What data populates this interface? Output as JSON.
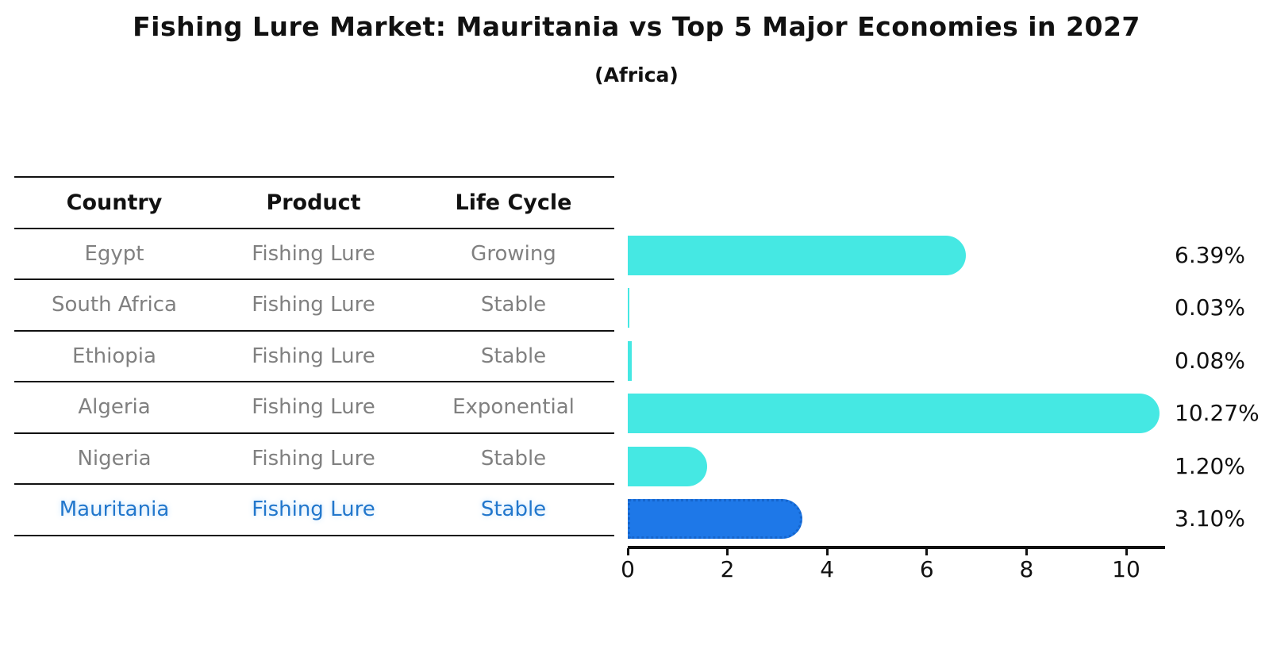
{
  "title": "Fishing Lure Market: Mauritania vs Top 5 Major Economies in 2027",
  "subtitle": "(Africa)",
  "table": {
    "headers": {
      "country": "Country",
      "product": "Product",
      "life_cycle": "Life Cycle"
    },
    "rows": [
      {
        "country": "Egypt",
        "product": "Fishing Lure",
        "life_cycle": "Growing",
        "highlighted": false
      },
      {
        "country": "South Africa",
        "product": "Fishing Lure",
        "life_cycle": "Stable",
        "highlighted": false
      },
      {
        "country": "Ethiopia",
        "product": "Fishing Lure",
        "life_cycle": "Stable",
        "highlighted": false
      },
      {
        "country": "Algeria",
        "product": "Fishing Lure",
        "life_cycle": "Exponential",
        "highlighted": false
      },
      {
        "country": "Nigeria",
        "product": "Fishing Lure",
        "life_cycle": "Stable",
        "highlighted": false
      },
      {
        "country": "Mauritania",
        "product": "Fishing Lure",
        "life_cycle": "Stable",
        "highlighted": true
      }
    ]
  },
  "chart_data": {
    "type": "bar",
    "orientation": "horizontal",
    "title": "Fishing Lure Market: Mauritania vs Top 5 Major Economies in 2027",
    "subtitle": "(Africa)",
    "categories": [
      "Egypt",
      "South Africa",
      "Ethiopia",
      "Algeria",
      "Nigeria",
      "Mauritania"
    ],
    "values": [
      6.39,
      0.03,
      0.08,
      10.27,
      1.2,
      3.1
    ],
    "value_labels": [
      "6.39%",
      "0.03%",
      "0.08%",
      "10.27%",
      "1.20%",
      "3.10%"
    ],
    "highlight_category": "Mauritania",
    "xlabel": "",
    "ylabel": "",
    "xlim": [
      0,
      10.8
    ],
    "xticks": [
      0,
      2,
      4,
      6,
      8,
      10
    ],
    "grid": false,
    "legend": "none",
    "colors": {
      "default_bar": "#45E8E3",
      "highlight_bar": "#1E78E8",
      "highlight_border": "#1565CC",
      "highlight_text": "#2277CC",
      "table_text": "#808080",
      "axis": "#111111"
    }
  }
}
